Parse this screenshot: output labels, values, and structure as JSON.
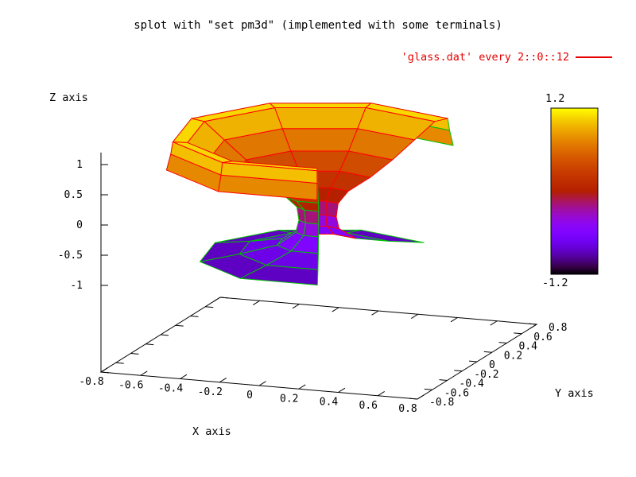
{
  "title": "splot with \"set pm3d\" (implemented with some terminals)",
  "legend": {
    "label": "'glass.dat' every 2::0::12",
    "color": "#e60000"
  },
  "axes": {
    "x": {
      "label": "X axis",
      "range": [
        -0.8,
        0.8
      ],
      "tick_values": [
        -0.8,
        -0.6,
        -0.4,
        -0.2,
        0,
        0.2,
        0.4,
        0.6,
        0.8
      ],
      "tick_labels": [
        "-0.8",
        "-0.6",
        "-0.4",
        "-0.2",
        "0",
        "0.2",
        "0.4",
        "0.6",
        "0.8"
      ]
    },
    "y": {
      "label": "Y axis",
      "range": [
        -0.8,
        0.8
      ],
      "tick_values": [
        -0.8,
        -0.6,
        -0.4,
        -0.2,
        0,
        0.2,
        0.4,
        0.6,
        0.8
      ],
      "tick_labels": [
        "-0.8",
        "-0.6",
        "-0.4",
        "-0.2",
        "0",
        "0.2",
        "0.4",
        "0.6",
        "0.8"
      ]
    },
    "z": {
      "label": "Z axis",
      "range": [
        -1.2,
        1.2
      ],
      "tick_values": [
        -1,
        -0.5,
        0,
        0.5,
        1
      ],
      "tick_labels": [
        "-1",
        "-0.5",
        "0",
        "0.5",
        "1"
      ]
    }
  },
  "colorbar": {
    "top_label": "1.2",
    "bottom_label": "-1.2",
    "min": -1.2,
    "max": 1.2,
    "palette": "pm3d rgbformulae 7,5,15"
  },
  "chart_data": {
    "type": "surface",
    "title": "splot with \"set pm3d\" (implemented with some terminals)",
    "source": "'glass.dat' every 2::0::12",
    "palette": "rgbformulae 7,5,15",
    "zrange": [
      -1.2,
      1.2
    ],
    "grid": false,
    "legend_position": "top-right",
    "mesh": {
      "angles_deg": [
        50,
        90,
        130,
        170,
        210,
        250,
        290
      ],
      "profile_r_z": [
        [
          0.73,
          0.62
        ],
        [
          0.71,
          0.88
        ],
        [
          0.7,
          1.08
        ],
        [
          0.63,
          1.06
        ],
        [
          0.52,
          0.8
        ],
        [
          0.4,
          0.52
        ],
        [
          0.28,
          0.28
        ],
        [
          0.16,
          0.1
        ],
        [
          0.105,
          -0.08
        ],
        [
          0.095,
          -0.3
        ],
        [
          0.11,
          -0.5
        ],
        [
          0.2,
          -0.7
        ],
        [
          0.38,
          -0.82
        ],
        [
          0.57,
          -0.92
        ]
      ]
    },
    "style": {
      "front_side_line_color": "#ff0000",
      "back_side_line_color": "#00c000",
      "axis_color": "#000000"
    }
  }
}
